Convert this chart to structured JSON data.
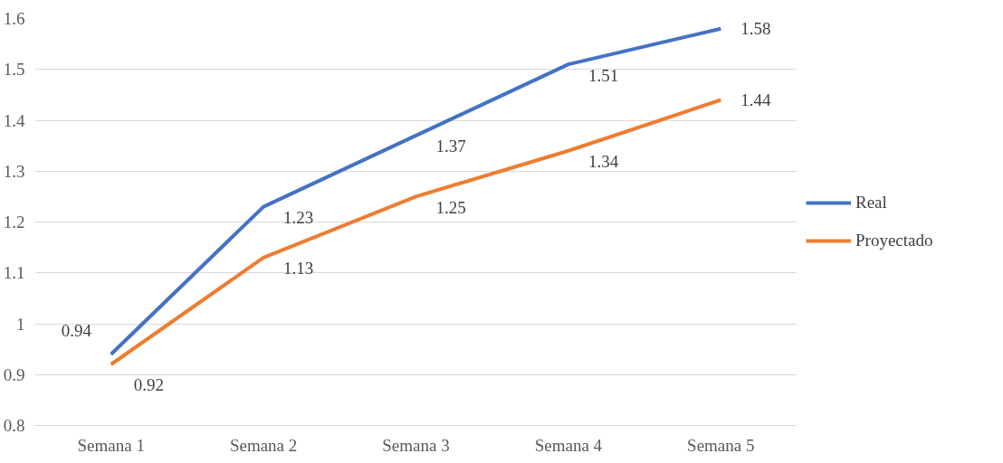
{
  "chart_data": {
    "type": "line",
    "categories": [
      "Semana 1",
      "Semana 2",
      "Semana 3",
      "Semana 4",
      "Semana 5"
    ],
    "series": [
      {
        "name": "Real",
        "color": "#4472c4",
        "values": [
          0.94,
          1.23,
          1.37,
          1.51,
          1.58
        ]
      },
      {
        "name": "Proyectado",
        "color": "#ed7d31",
        "values": [
          0.92,
          1.13,
          1.25,
          1.34,
          1.44
        ]
      }
    ],
    "ylim": [
      0.8,
      1.6
    ],
    "yticks": [
      0.8,
      0.9,
      1,
      1.1,
      1.2,
      1.3,
      1.4,
      1.5,
      1.6
    ],
    "grid": "y",
    "legend": "right",
    "data_labels": true,
    "marker": "none",
    "line_style": "solid"
  }
}
